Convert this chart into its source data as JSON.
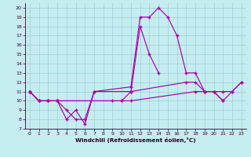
{
  "xlabel": "Windchill (Refroidissement éolien,°C)",
  "background_color": "#c5edf0",
  "grid_color": "#9ecdd4",
  "line_color": "#aa00aa",
  "xlim": [
    -0.5,
    23.5
  ],
  "ylim": [
    7,
    20.5
  ],
  "xticks": [
    0,
    1,
    2,
    3,
    4,
    5,
    6,
    7,
    8,
    9,
    10,
    11,
    12,
    13,
    14,
    15,
    16,
    17,
    18,
    19,
    20,
    21,
    22,
    23
  ],
  "yticks": [
    7,
    8,
    9,
    10,
    11,
    12,
    13,
    14,
    15,
    16,
    17,
    18,
    19,
    20
  ],
  "series1_x": [
    0,
    1,
    2,
    3,
    4,
    5,
    6,
    7,
    11,
    12,
    13,
    14,
    15,
    16,
    17,
    18,
    19,
    20,
    21,
    22,
    23
  ],
  "series1_y": [
    11,
    10,
    10,
    10,
    8,
    9,
    7.5,
    11,
    11.5,
    19,
    19,
    20,
    19,
    17,
    13,
    13,
    11,
    11,
    10,
    11,
    12
  ],
  "series2_x": [
    0,
    1,
    2,
    3,
    4,
    5,
    6,
    7,
    11,
    12,
    13,
    14
  ],
  "series2_y": [
    11,
    10,
    10,
    10,
    9,
    8,
    8,
    11,
    11,
    18,
    15,
    13
  ],
  "series3_x": [
    0,
    1,
    2,
    3,
    10,
    11,
    17,
    18,
    19,
    20,
    21,
    22,
    23
  ],
  "series3_y": [
    11,
    10,
    10,
    10,
    10,
    11,
    12,
    12,
    11,
    11,
    11,
    11,
    12
  ],
  "series4_x": [
    0,
    1,
    2,
    3,
    9,
    10,
    11,
    18,
    19,
    20,
    21
  ],
  "series4_y": [
    11,
    10,
    10,
    10,
    10,
    10,
    10,
    11,
    11,
    11,
    10
  ]
}
